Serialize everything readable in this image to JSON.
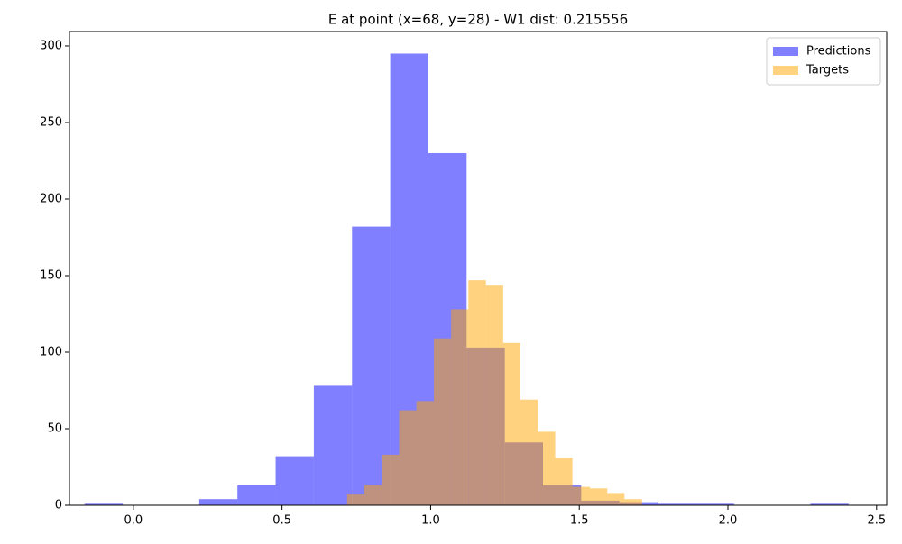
{
  "chart_data": {
    "type": "histogram",
    "title": "E at point (x=68, y=28) - W1 dist: 0.215556",
    "series": [
      {
        "name": "Predictions",
        "color": "#0000ff",
        "alpha": 0.5,
        "bins": [
          -0.164,
          -0.0355,
          0.093,
          0.2215,
          0.35,
          0.4785,
          0.607,
          0.7355,
          0.864,
          0.9925,
          1.121,
          1.2495,
          1.378,
          1.5065,
          1.635,
          1.7635,
          1.892,
          2.0205,
          2.149,
          2.2775,
          2.406
        ],
        "values": [
          1,
          0,
          0,
          4,
          13,
          32,
          78,
          182,
          295,
          230,
          103,
          41,
          13,
          3,
          2,
          1,
          1,
          0,
          0,
          1
        ]
      },
      {
        "name": "Targets",
        "color": "#ffa500",
        "alpha": 0.5,
        "bins": [
          0.719,
          0.777,
          0.836,
          0.894,
          0.952,
          1.011,
          1.069,
          1.127,
          1.186,
          1.244,
          1.302,
          1.361,
          1.419,
          1.477,
          1.536,
          1.594,
          1.652,
          1.711
        ],
        "values": [
          7,
          13,
          33,
          62,
          68,
          109,
          128,
          147,
          144,
          106,
          69,
          48,
          31,
          12,
          11,
          8,
          4
        ]
      }
    ],
    "xlim": [
      -0.215,
      2.534
    ],
    "xticks": [
      {
        "value": 0,
        "label": "0.0"
      },
      0.5,
      {
        "value": 1,
        "label": "1.0"
      },
      1.5,
      {
        "value": 2,
        "label": "2.0"
      },
      2.5
    ],
    "ylim": [
      0,
      309.4
    ],
    "yticks": [
      0,
      50,
      100,
      150,
      200,
      250,
      300
    ],
    "legend": "upper right"
  }
}
